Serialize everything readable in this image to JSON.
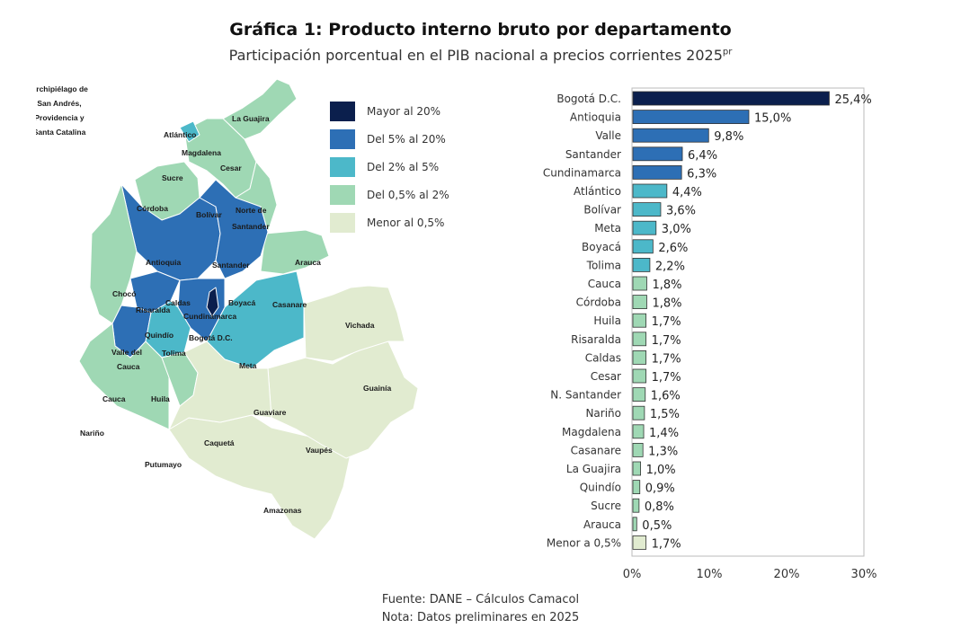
{
  "title": "Gráfica 1: Producto interno bruto por departamento",
  "subtitle": "Participación porcentual en el PIB nacional a precios corrientes 2025",
  "subtitle_sup": "pr",
  "colors": {
    "mayor_20": "#0b1f4d",
    "del_5_20": "#2d6fb5",
    "del_2_5": "#4cb8c9",
    "del_05_2": "#9fd8b4",
    "menor_05": "#e1ebd0",
    "sin_dato": "#eef3e2"
  },
  "map": {
    "island_label": [
      "Archipiélago de",
      "San Andrés,",
      "Providencia y",
      "Santa Catalina"
    ],
    "legend": [
      {
        "label": "Mayor al 20%",
        "class": "mayor_20"
      },
      {
        "label": "Del 5% al 20%",
        "class": "del_5_20"
      },
      {
        "label": "Del 2% al 5%",
        "class": "del_2_5"
      },
      {
        "label": "Del 0,5% al 2%",
        "class": "del_05_2"
      },
      {
        "label": "Menor al 0,5%",
        "class": "menor_05"
      }
    ],
    "departments": {
      "la_guajira": "La Guajira",
      "atlantico": "Atlántico",
      "magdalena": "Magdalena",
      "cesar": "Cesar",
      "sucre": "Sucre",
      "cordoba": "Córdoba",
      "bolivar": "Bolívar",
      "norte_santander_1": "Norte de",
      "norte_santander_2": "Santander",
      "antioquia": "Antioquia",
      "santander": "Santander",
      "arauca": "Arauca",
      "choco": "Chocó",
      "caldas": "Caldas",
      "risaralda": "Risaralda",
      "boyaca": "Boyacá",
      "cundinamarca": "Cundinamarca",
      "casanare": "Casanare",
      "vichada": "Vichada",
      "quindio": "Quindío",
      "bogota": "Bogotá D.C.",
      "valle_1": "Valle del",
      "valle_2": "Cauca",
      "tolima": "Tolima",
      "meta": "Meta",
      "guainia": "Guainía",
      "cauca": "Cauca",
      "huila": "Huila",
      "guaviare": "Guaviare",
      "narino": "Nariño",
      "caqueta": "Caquetá",
      "vaupes": "Vaupés",
      "putumayo": "Putumayo",
      "amazonas": "Amazonas"
    }
  },
  "chart_data": {
    "type": "bar",
    "orientation": "horizontal",
    "categories": [
      "Bogotá D.C.",
      "Antioquia",
      "Valle",
      "Santander",
      "Cundinamarca",
      "Atlántico",
      "Bolívar",
      "Meta",
      "Boyacá",
      "Tolima",
      "Cauca",
      "Córdoba",
      "Huila",
      "Risaralda",
      "Caldas",
      "Cesar",
      "N. Santander",
      "Nariño",
      "Magdalena",
      "Casanare",
      "La Guajira",
      "Quindío",
      "Sucre",
      "Arauca",
      "Menor a 0,5%"
    ],
    "values": [
      25.4,
      15.0,
      9.8,
      6.4,
      6.3,
      4.4,
      3.6,
      3.0,
      2.6,
      2.2,
      1.8,
      1.8,
      1.7,
      1.7,
      1.7,
      1.7,
      1.6,
      1.5,
      1.4,
      1.3,
      1.0,
      0.9,
      0.8,
      0.5,
      1.7
    ],
    "value_labels": [
      "25,4%",
      "15,0%",
      "9,8%",
      "6,4%",
      "6,3%",
      "4,4%",
      "3,6%",
      "3,0%",
      "2,6%",
      "2,2%",
      "1,8%",
      "1,8%",
      "1,7%",
      "1,7%",
      "1,7%",
      "1,7%",
      "1,6%",
      "1,5%",
      "1,4%",
      "1,3%",
      "1,0%",
      "0,9%",
      "0,8%",
      "0,5%",
      "1,7%"
    ],
    "xlim": [
      0,
      30
    ],
    "xticks": [
      "0%",
      "10%",
      "20%",
      "30%"
    ],
    "xtick_values": [
      0,
      10,
      20,
      30
    ],
    "grid": false
  },
  "footer": {
    "source": "Fuente: DANE – Cálculos Camacol",
    "note": "Nota: Datos preliminares en 2025"
  }
}
